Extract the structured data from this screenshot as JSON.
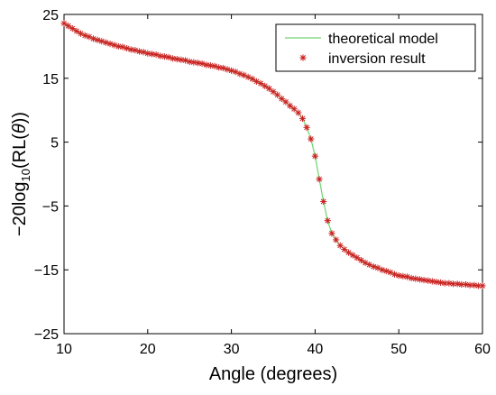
{
  "chart_data": {
    "type": "line",
    "title": "",
    "xlabel": "Angle (degrees)",
    "ylabel": {
      "prefix": "−20log",
      "sub": "10",
      "suffix_open": "(RL(",
      "theta": "θ",
      "suffix_close": "))"
    },
    "xlim": [
      10,
      60
    ],
    "ylim": [
      -25,
      25
    ],
    "xticks": [
      10,
      20,
      30,
      40,
      50,
      60
    ],
    "yticks": [
      25,
      15,
      5,
      -5,
      -15,
      -25
    ],
    "grid": false,
    "legend_placement": "top-right",
    "series": [
      {
        "name": "theoretical model",
        "style": "line",
        "color": "#6fd36f",
        "x": [
          10,
          12,
          14,
          16,
          18,
          20,
          22,
          24,
          26,
          28,
          30,
          32,
          34,
          35,
          36,
          37,
          38,
          38.5,
          39,
          39.5,
          40,
          40.5,
          41,
          41.5,
          42,
          42.5,
          43,
          44,
          45,
          46,
          48,
          50,
          52,
          54,
          56,
          58,
          60
        ],
        "y": [
          23.6,
          22.0,
          21.0,
          20.2,
          19.5,
          18.9,
          18.4,
          17.9,
          17.4,
          16.9,
          16.2,
          15.2,
          13.8,
          12.9,
          11.8,
          10.7,
          9.6,
          8.7,
          7.3,
          5.5,
          2.8,
          -0.8,
          -4.3,
          -7.3,
          -9.3,
          -10.3,
          -11.2,
          -12.3,
          -13.1,
          -13.9,
          -15.0,
          -15.9,
          -16.4,
          -16.8,
          -17.1,
          -17.3,
          -17.5
        ]
      },
      {
        "name": "inversion result",
        "style": "star",
        "color": "#cc1f1f",
        "x": [
          10,
          10.5,
          11,
          11.5,
          12,
          12.5,
          13,
          13.5,
          14,
          14.5,
          15,
          15.5,
          16,
          16.5,
          17,
          17.5,
          18,
          18.5,
          19,
          19.5,
          20,
          20.5,
          21,
          21.5,
          22,
          22.5,
          23,
          23.5,
          24,
          24.5,
          25,
          25.5,
          26,
          26.5,
          27,
          27.5,
          28,
          28.5,
          29,
          29.5,
          30,
          30.5,
          31,
          31.5,
          32,
          32.5,
          33,
          33.5,
          34,
          34.5,
          35,
          35.5,
          36,
          36.5,
          37,
          37.5,
          38,
          38.5,
          39,
          39.5,
          40,
          40.5,
          41,
          41.5,
          42,
          42.5,
          43,
          43.5,
          44,
          44.5,
          45,
          45.5,
          46,
          46.5,
          47,
          47.5,
          48,
          48.5,
          49,
          49.5,
          50,
          50.5,
          51,
          51.5,
          52,
          52.5,
          53,
          53.5,
          54,
          54.5,
          55,
          55.5,
          56,
          56.5,
          57,
          57.5,
          58,
          58.5,
          59,
          59.5,
          60
        ],
        "y": [
          23.6,
          23.2,
          22.8,
          22.4,
          22.0,
          21.7,
          21.5,
          21.2,
          21.0,
          20.8,
          20.6,
          20.4,
          20.2,
          20.0,
          19.9,
          19.7,
          19.5,
          19.4,
          19.2,
          19.1,
          18.9,
          18.8,
          18.7,
          18.5,
          18.4,
          18.3,
          18.1,
          18.0,
          17.9,
          17.8,
          17.6,
          17.5,
          17.4,
          17.3,
          17.1,
          17.0,
          16.9,
          16.7,
          16.6,
          16.4,
          16.2,
          16.0,
          15.7,
          15.5,
          15.2,
          14.9,
          14.5,
          14.2,
          13.8,
          13.4,
          12.9,
          12.4,
          11.8,
          11.3,
          10.7,
          10.2,
          9.6,
          8.7,
          7.3,
          5.5,
          2.8,
          -0.8,
          -4.3,
          -7.3,
          -9.3,
          -10.3,
          -11.2,
          -11.8,
          -12.3,
          -12.7,
          -13.1,
          -13.5,
          -13.9,
          -14.2,
          -14.5,
          -14.7,
          -15.0,
          -15.2,
          -15.4,
          -15.7,
          -15.9,
          -16.0,
          -16.1,
          -16.3,
          -16.4,
          -16.5,
          -16.6,
          -16.7,
          -16.8,
          -16.9,
          -17.0,
          -17.1,
          -17.1,
          -17.2,
          -17.2,
          -17.3,
          -17.3,
          -17.4,
          -17.4,
          -17.5,
          -17.5
        ]
      }
    ]
  }
}
